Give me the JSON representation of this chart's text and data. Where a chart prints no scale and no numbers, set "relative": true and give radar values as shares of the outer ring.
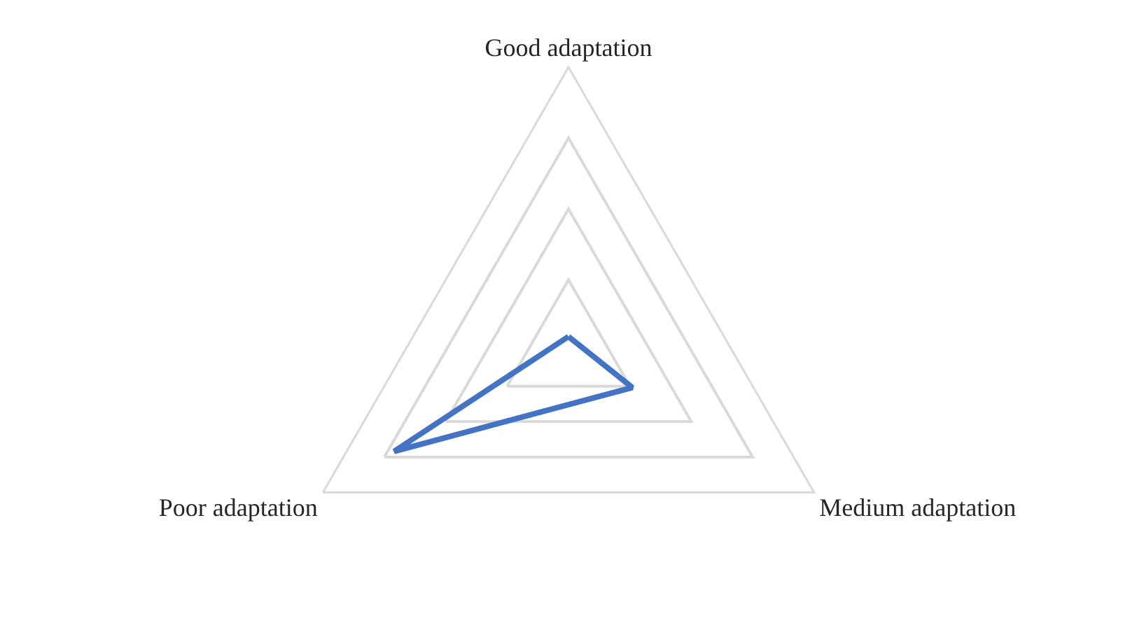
{
  "chart_data": {
    "type": "radar",
    "categories": [
      "Good adaptation",
      "Medium adaptation",
      "Poor adaptation"
    ],
    "series": [
      {
        "color": "#4472c4",
        "values": [
          0.05,
          0.26,
          0.71
        ]
      }
    ],
    "relative": true,
    "grid": true,
    "marker": "none",
    "line_style": "solid"
  }
}
